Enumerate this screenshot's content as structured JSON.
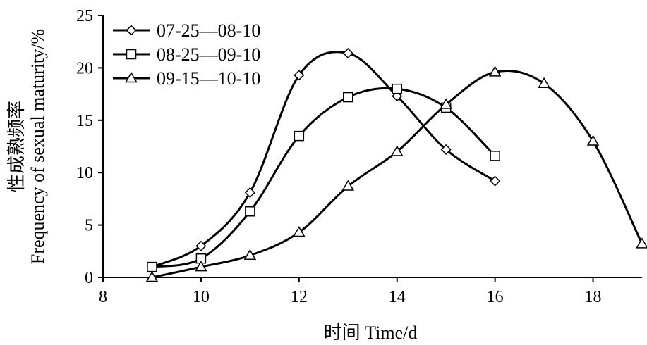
{
  "chart_data": {
    "type": "line",
    "xlabel": "时间 Time/d",
    "ylabel_cn": "性成熟频率",
    "ylabel_en": "Frequency of sexual maturity/%",
    "xlim": [
      8,
      19
    ],
    "ylim": [
      0,
      25
    ],
    "xticks": [
      8,
      10,
      12,
      14,
      16,
      18
    ],
    "yticks": [
      0,
      5,
      10,
      15,
      20,
      25
    ],
    "legend_position": "top-left",
    "grid": false,
    "series": [
      {
        "name": "07-25—08-10",
        "marker": "diamond",
        "x": [
          9,
          10,
          11,
          12,
          13,
          14,
          15,
          16
        ],
        "y": [
          1.0,
          3.0,
          8.1,
          19.3,
          21.4,
          17.3,
          12.2,
          9.2
        ]
      },
      {
        "name": "08-25—09-10",
        "marker": "square",
        "x": [
          9,
          10,
          11,
          12,
          13,
          14,
          15,
          16
        ],
        "y": [
          1.0,
          1.8,
          6.3,
          13.5,
          17.2,
          18.0,
          16.2,
          11.6
        ]
      },
      {
        "name": "09-15—10-10",
        "marker": "triangle",
        "x": [
          9,
          10,
          11,
          12,
          13,
          14,
          15,
          16,
          17,
          18,
          19
        ],
        "y": [
          0.0,
          1.0,
          2.1,
          4.3,
          8.7,
          12.0,
          16.5,
          19.6,
          18.5,
          13.0,
          3.2
        ]
      }
    ]
  }
}
